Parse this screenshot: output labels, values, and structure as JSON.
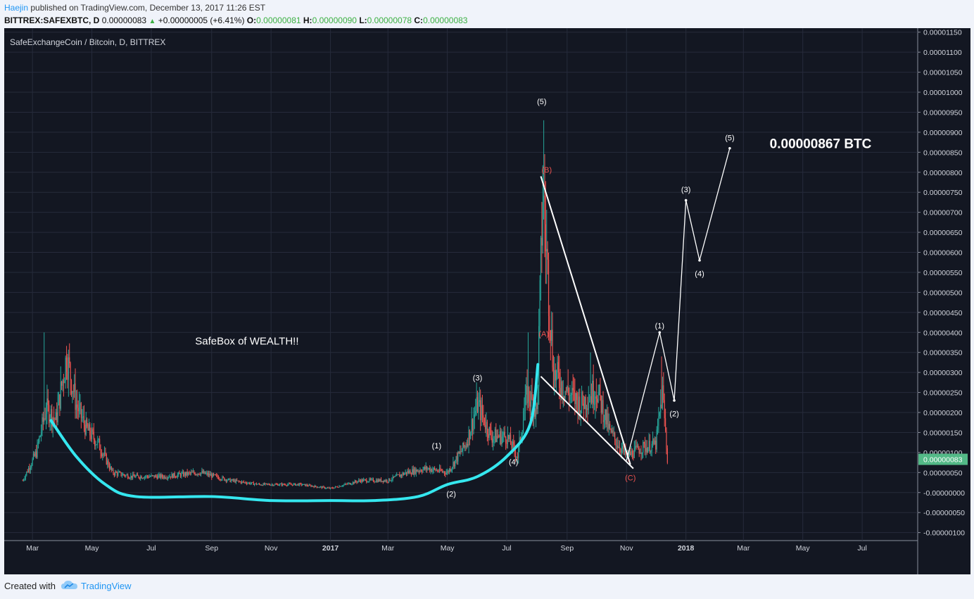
{
  "header": {
    "author": "Haejin",
    "published": "published on TradingView.com, December 13, 2017 11:26 EST",
    "symbol": "BITTREX:SAFEXBTC, D",
    "last": "0.00000083",
    "up_arrow": "▲",
    "change": "+0.00000005 (+6.41%)",
    "o_label": "O:",
    "o_value": "0.00000081",
    "h_label": "H:",
    "h_value": "0.00000090",
    "l_label": "L:",
    "l_value": "0.00000078",
    "c_label": "C:",
    "c_value": "0.00000083"
  },
  "footer": {
    "created_with": "Created with",
    "tradingview": "TradingView",
    "logo_icon": "tradingview-cloud-icon"
  },
  "colors": {
    "background": "#131722",
    "grid": "#262b3b",
    "up": "#26a69a",
    "down": "#ef5350",
    "trend_curve": "#35e7ef",
    "projection": "#ffffff",
    "correction_label": "#ef5350",
    "price_badge": "#53b987"
  },
  "chart_data": {
    "type": "candlestick",
    "title": "SafeExchangeCoin / Bitcoin, D, BITTREX",
    "price_axis": {
      "ticks": [
        "0.00001150",
        "0.00001100",
        "0.00001050",
        "0.00001000",
        "0.00000950",
        "0.00000900",
        "0.00000850",
        "0.00000800",
        "0.00000750",
        "0.00000700",
        "0.00000650",
        "0.00000600",
        "0.00000550",
        "0.00000500",
        "0.00000450",
        "0.00000400",
        "0.00000350",
        "0.00000300",
        "0.00000250",
        "0.00000200",
        "0.00000150",
        "0.00000100",
        "0.00000050",
        "-0.00000000",
        "-0.00000050",
        "-0.00000100"
      ],
      "ylim": [
        -1.2e-06,
        1.16e-05
      ],
      "current_price": "0.00000083"
    },
    "time_axis": {
      "ticks": [
        "Mar",
        "May",
        "Jul",
        "Sep",
        "Nov",
        "2017",
        "Mar",
        "May",
        "Jul",
        "Sep",
        "Nov",
        "2018",
        "Mar",
        "May",
        "Jul"
      ],
      "bold": [
        "2017",
        "2018"
      ]
    },
    "price_path": [
      [
        "2016-02-20",
        3e-07
      ],
      [
        "2016-03-05",
        1e-06
      ],
      [
        "2016-03-15",
        2.1e-06
      ],
      [
        "2016-03-25",
        1.8e-06
      ],
      [
        "2016-04-05",
        3.4e-06
      ],
      [
        "2016-04-15",
        2.2e-06
      ],
      [
        "2016-04-25",
        1.6e-06
      ],
      [
        "2016-05-08",
        1.2e-06
      ],
      [
        "2016-05-22",
        5e-07
      ],
      [
        "2016-06-10",
        4e-07
      ],
      [
        "2016-07-15",
        4e-07
      ],
      [
        "2016-08-20",
        5e-07
      ],
      [
        "2016-09-20",
        3e-07
      ],
      [
        "2016-10-20",
        2e-07
      ],
      [
        "2016-12-01",
        2e-07
      ],
      [
        "2017-01-01",
        1e-07
      ],
      [
        "2017-02-01",
        3e-07
      ],
      [
        "2017-03-01",
        3e-07
      ],
      [
        "2017-03-20",
        5e-07
      ],
      [
        "2017-04-10",
        6e-07
      ],
      [
        "2017-05-01",
        5e-07
      ],
      [
        "2017-05-20",
        1.2e-06
      ],
      [
        "2017-06-01",
        2.2e-06
      ],
      [
        "2017-06-15",
        1.4e-06
      ],
      [
        "2017-07-01",
        1.4e-06
      ],
      [
        "2017-07-12",
        9e-07
      ],
      [
        "2017-07-22",
        2.5e-06
      ],
      [
        "2017-08-01",
        2e-06
      ],
      [
        "2017-08-07",
        7.5e-06
      ],
      [
        "2017-08-12",
        5.5e-06
      ],
      [
        "2017-08-18",
        3e-06
      ],
      [
        "2017-09-01",
        2.5e-06
      ],
      [
        "2017-09-15",
        2.2e-06
      ],
      [
        "2017-10-01",
        2.6e-06
      ],
      [
        "2017-10-15",
        1.5e-06
      ],
      [
        "2017-11-01",
        9e-07
      ],
      [
        "2017-11-15",
        1.1e-06
      ],
      [
        "2017-12-01",
        1.2e-06
      ],
      [
        "2017-12-08",
        2.5e-06
      ],
      [
        "2017-12-13",
        8.3e-07
      ]
    ],
    "spikes": [
      [
        "2016-03-13",
        4e-06
      ],
      [
        "2017-06-02",
        2.5e-06
      ],
      [
        "2017-07-23",
        4e-06
      ],
      [
        "2017-08-08",
        9.3e-06
      ],
      [
        "2017-09-25",
        3.5e-06
      ],
      [
        "2017-12-07",
        3.4e-06
      ]
    ],
    "cyan_curve": [
      [
        "2016-03-20",
        1.8e-06
      ],
      [
        "2016-04-15",
        9e-07
      ],
      [
        "2016-05-15",
        2e-07
      ],
      [
        "2016-06-15",
        -1e-07
      ],
      [
        "2016-09-01",
        -1e-07
      ],
      [
        "2016-11-01",
        -2e-07
      ],
      [
        "2017-01-01",
        -2e-07
      ],
      [
        "2017-02-15",
        -2e-07
      ],
      [
        "2017-04-01",
        -1e-07
      ],
      [
        "2017-05-01",
        2e-07
      ],
      [
        "2017-06-01",
        4e-07
      ],
      [
        "2017-07-01",
        9e-07
      ],
      [
        "2017-07-25",
        1.7e-06
      ],
      [
        "2017-08-02",
        3.2e-06
      ]
    ],
    "correction_lines": [
      [
        [
          "2017-08-05",
          7.9e-06
        ],
        [
          "2017-11-05",
          7e-07
        ]
      ],
      [
        [
          "2017-08-05",
          2.9e-06
        ],
        [
          "2017-11-08",
          6e-07
        ]
      ]
    ],
    "projection_path": [
      [
        "2017-11-01",
        8e-07
      ],
      [
        "2017-12-05",
        4e-06
      ],
      [
        "2017-12-20",
        2.3e-06
      ],
      [
        "2018-01-01",
        7.3e-06
      ],
      [
        "2018-01-15",
        5.8e-06
      ],
      [
        "2018-02-15",
        8.6e-06
      ]
    ],
    "wave_labels": [
      {
        "text": "(1)",
        "date": "2017-04-20",
        "price": 1.1e-06,
        "color": "#ffffff"
      },
      {
        "text": "(2)",
        "date": "2017-05-05",
        "price": -1e-07,
        "color": "#ffffff"
      },
      {
        "text": "(3)",
        "date": "2017-06-01",
        "price": 2.8e-06,
        "color": "#ffffff"
      },
      {
        "text": "(4)",
        "date": "2017-07-08",
        "price": 7e-07,
        "color": "#ffffff"
      },
      {
        "text": "(5)",
        "date": "2017-08-06",
        "price": 9.7e-06,
        "color": "#ffffff"
      },
      {
        "text": "(B)",
        "date": "2017-08-11",
        "price": 8e-06,
        "color": "#ef5350"
      },
      {
        "text": "(A)",
        "date": "2017-08-08",
        "price": 3.9e-06,
        "color": "#ef5350"
      },
      {
        "text": "(C)",
        "date": "2017-11-05",
        "price": 3e-07,
        "color": "#ef5350"
      },
      {
        "text": "(1)",
        "date": "2017-12-05",
        "price": 4.1e-06,
        "color": "#ffffff"
      },
      {
        "text": "(2)",
        "date": "2017-12-20",
        "price": 1.9e-06,
        "color": "#ffffff"
      },
      {
        "text": "(3)",
        "date": "2018-01-01",
        "price": 7.5e-06,
        "color": "#ffffff"
      },
      {
        "text": "(4)",
        "date": "2018-01-15",
        "price": 5.4e-06,
        "color": "#ffffff"
      },
      {
        "text": "(5)",
        "date": "2018-02-15",
        "price": 8.8e-06,
        "color": "#ffffff"
      }
    ],
    "annotations": {
      "safebox": "SafeBox of WEALTH!!",
      "target": "0.00000867 BTC"
    }
  }
}
